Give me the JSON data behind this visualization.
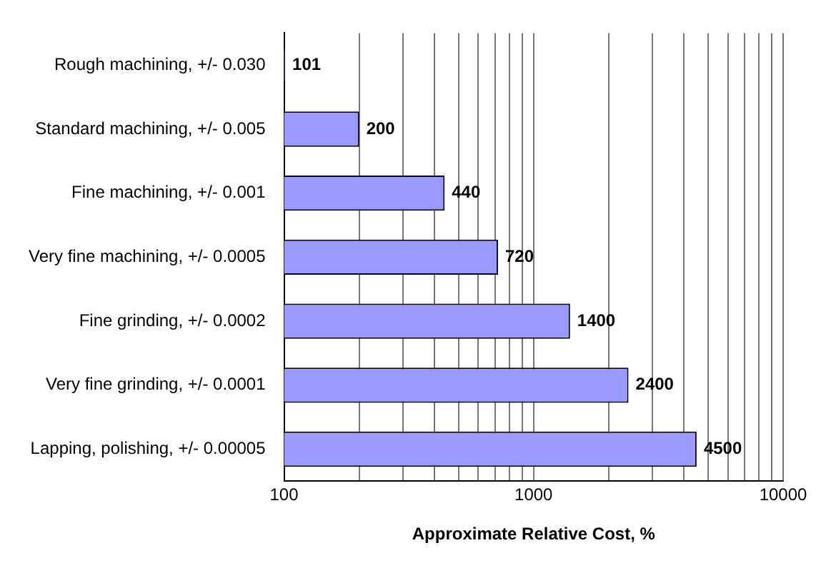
{
  "chart_data": {
    "type": "bar",
    "orientation": "horizontal",
    "xlabel": "Approximate Relative Cost, %",
    "categories": [
      "Rough machining, +/- 0.030",
      "Standard machining, +/- 0.005",
      "Fine machining, +/- 0.001",
      "Very fine machining, +/- 0.0005",
      "Fine grinding, +/- 0.0002",
      "Very fine grinding, +/- 0.0001",
      "Lapping, polishing, +/- 0.00005"
    ],
    "values": [
      101,
      200,
      440,
      720,
      1400,
      2400,
      4500
    ],
    "color": "#9999ff",
    "log": "x",
    "xlim": [
      100,
      10000
    ],
    "xticks": [
      100,
      {
        "value": 200,
        "label": null
      },
      {
        "value": 300,
        "label": null
      },
      {
        "value": 400,
        "label": null
      },
      {
        "value": 500,
        "label": null
      },
      {
        "value": 600,
        "label": null
      },
      {
        "value": 700,
        "label": null
      },
      {
        "value": 800,
        "label": null
      },
      {
        "value": 900,
        "label": null
      },
      1000,
      {
        "value": 2000,
        "label": null
      },
      {
        "value": 3000,
        "label": null
      },
      {
        "value": 4000,
        "label": null
      },
      {
        "value": 5000,
        "label": null
      },
      {
        "value": 6000,
        "label": null
      },
      {
        "value": 7000,
        "label": null
      },
      {
        "value": 8000,
        "label": null
      },
      {
        "value": 9000,
        "label": null
      },
      10000
    ],
    "grid": "x",
    "data_labels": true
  }
}
